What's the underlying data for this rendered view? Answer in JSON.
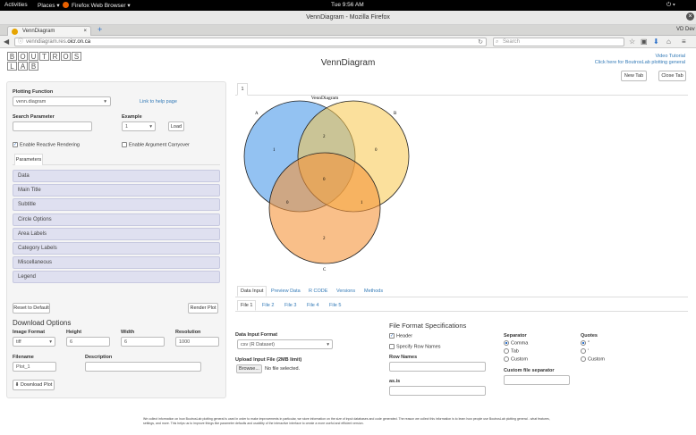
{
  "gnome": {
    "activities": "Activities",
    "places": "Places ▾",
    "app": "Firefox Web Browser ▾",
    "clock": "Tue  9:56 AM"
  },
  "window_title": "VennDiagram - Mozilla Firefox",
  "browser": {
    "tab_label": "VennDiagram",
    "new_tab": "+",
    "url_prefix": "venndiagram.res.",
    "url_domain": "oicr.on.ca",
    "search_placeholder": "Search",
    "user": "VD Dev"
  },
  "header": {
    "logo_top": [
      "B",
      "O",
      "U",
      "T",
      "R",
      "O",
      "S"
    ],
    "logo_bottom": [
      "L",
      "A",
      "B"
    ],
    "title": "VennDiagram",
    "video_tutorial": "Video Tutorial",
    "click_here": "Click here for BoutrosLab plotting general"
  },
  "sidebar": {
    "plotting_function_label": "Plotting Function",
    "plotting_function_value": "venn.diagram",
    "help_link": "Link to help page",
    "search_label": "Search Parameter",
    "example_label": "Example",
    "example_value": "1",
    "load": "Load",
    "reactive": "Enable Reactive Rendering",
    "carryover": "Enable Argument Carryover",
    "params_tab": "Parameters",
    "panels": [
      "Data",
      "Main Title",
      "Subtitle",
      "Circle Options",
      "Area Labels",
      "Category Labels",
      "Miscellaneous",
      "Legend"
    ],
    "reset": "Reset to Default",
    "render": "Render Plot",
    "download_title": "Download Options",
    "image_format_label": "Image Format",
    "image_format_value": "tiff",
    "height_label": "Height",
    "height_value": "6",
    "width_label": "Width",
    "width_value": "6",
    "resolution_label": "Resolution",
    "resolution_value": "1000",
    "filename_label": "Filename",
    "filename_value": "Plot_1",
    "description_label": "Description",
    "download": "Download Plot"
  },
  "plot": {
    "tab": "1",
    "new_tab": "New Tab",
    "close_tab": "Close Tab",
    "venn_title": "VennDiagram",
    "set_labels": [
      "A",
      "B",
      "C"
    ],
    "region_counts": {
      "a_only": "1",
      "b_only": "0",
      "c_only": "2",
      "ab": "2",
      "ac": "0",
      "bc": "1",
      "abc": "0"
    },
    "colors": {
      "A": "#3a8fe8",
      "B": "#f7c64a",
      "C": "#f5953a"
    }
  },
  "data_panel": {
    "tabs": [
      "Data Input",
      "Preview Data",
      "R CODE",
      "Versions",
      "Methods"
    ],
    "file_tabs": [
      "File 1",
      "File 2",
      "File 3",
      "File 4",
      "File 5"
    ],
    "input_format_label": "Data Input Format",
    "input_format_value": "csv (R Dataset)",
    "upload_label": "Upload Input File (2MB limit)",
    "browse": "Browse...",
    "no_file": "No file selected.",
    "spec_title": "File Format Specifications",
    "header": "Header",
    "row_names": "Specify Row Names",
    "row_names_label": "Row Names",
    "as_is_label": "as.is",
    "separator_label": "Separator",
    "separators": [
      "Comma",
      "Tab",
      "Custom"
    ],
    "custom_sep_label": "Custom file separator",
    "quotes_label": "Quotes",
    "quotes": [
      "\"",
      "'",
      "Custom"
    ]
  },
  "footer": "We collect information on how BoutrosLab plotting general is used in order to make improvements in particular, we store information on the size of input databases and code generated. The reason we collect this information is to learn how people use BoutrosLab plotting general - what features, settings, and more. This helps us to improve things like parameter defaults and usability of the interactive interface to create a more useful and efficient version."
}
